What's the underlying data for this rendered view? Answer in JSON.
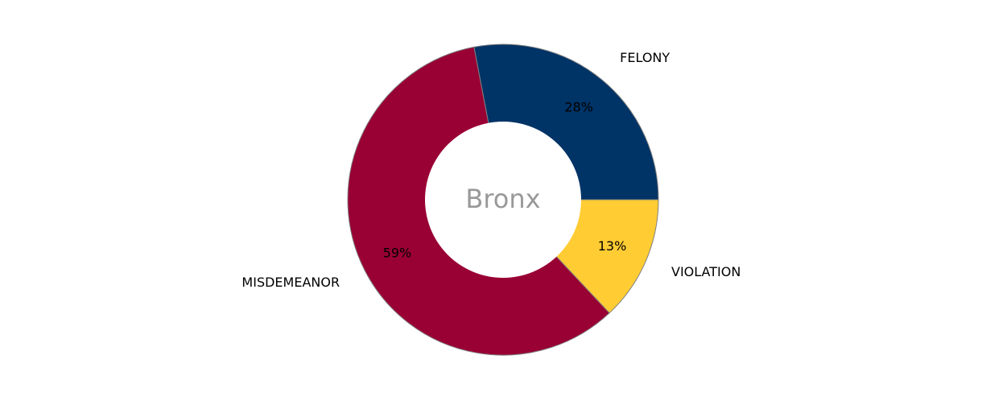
{
  "chart_data": {
    "type": "pie",
    "variant": "donut",
    "center_label": "Bronx",
    "start_angle_deg": 0,
    "direction": "counterclockwise",
    "categories": [
      "FELONY",
      "MISDEMEANOR",
      "VIOLATION"
    ],
    "values": [
      28,
      59,
      13
    ],
    "percent_labels": [
      "28%",
      "59%",
      "13%"
    ],
    "colors": [
      "#003366",
      "#990033",
      "#ffcc33"
    ],
    "edge_color": "#808080",
    "center_label_color": "#999999",
    "legend": "none"
  }
}
